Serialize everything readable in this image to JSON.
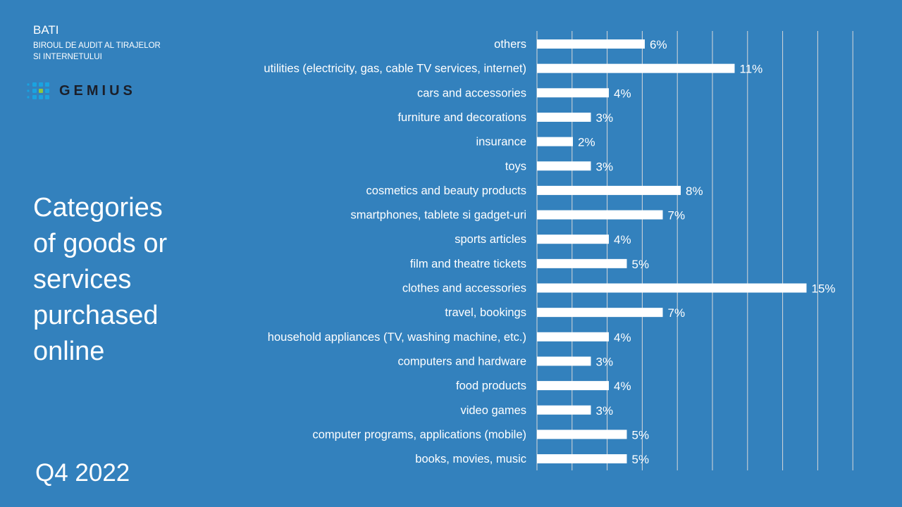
{
  "header": {
    "org_short": "BATI",
    "org_full_line1": "BIROUL DE AUDIT AL TIRAJELOR",
    "org_full_line2": "SI INTERNETULUI",
    "partner_logo": "GEMIUS"
  },
  "slide_title": "Categories of goods or services purchased online",
  "period": "Q4 2022",
  "colors": {
    "background": "#3381bd",
    "bar": "#ffffff",
    "grid": "#d9d9d9"
  },
  "chart_data": {
    "type": "bar",
    "orientation": "horizontal",
    "title": "Categories of goods or services purchased online",
    "xlabel": "",
    "ylabel": "",
    "xlim": [
      0,
      18
    ],
    "x_tick_step": 2,
    "grid": true,
    "categories": [
      "others",
      "utilities (electricity, gas, cable TV services, internet)",
      "cars and accessories",
      "furniture and decorations",
      "insurance",
      "toys",
      "cosmetics and beauty products",
      "smartphones, tablete si gadget-uri",
      "sports articles",
      "film and theatre tickets",
      "clothes and accessories",
      "travel, bookings",
      "household appliances (TV, washing machine, etc.)",
      "computers and hardware",
      "food products",
      "video games",
      "computer programs, applications (mobile)",
      "books, movies, music"
    ],
    "values": [
      6,
      11,
      4,
      3,
      2,
      3,
      8,
      7,
      4,
      5,
      15,
      7,
      4,
      3,
      4,
      3,
      5,
      5
    ],
    "data_labels": [
      "6%",
      "11%",
      "4%",
      "3%",
      "2%",
      "3%",
      "8%",
      "7%",
      "4%",
      "5%",
      "15%",
      "7%",
      "4%",
      "3%",
      "4%",
      "3%",
      "5%",
      "5%"
    ]
  }
}
